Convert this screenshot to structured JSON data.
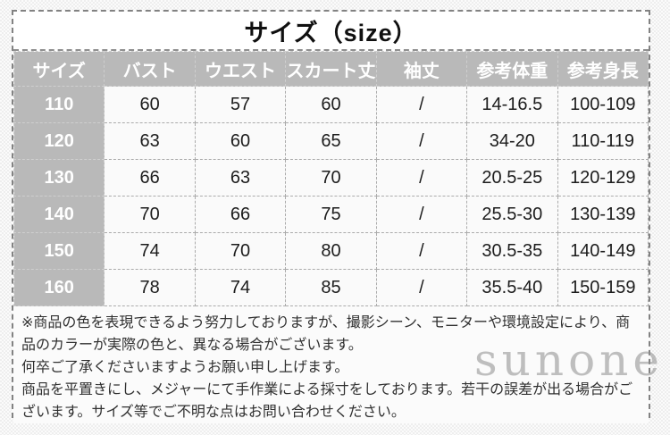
{
  "title": "サイズ（size）",
  "table": {
    "headers": [
      "サイズ",
      "バスト",
      "ウエスト",
      "スカート丈",
      "袖丈",
      "参考体重",
      "参考身長"
    ],
    "rows": [
      [
        "110",
        "60",
        "57",
        "60",
        "/",
        "14-16.5",
        "100-109"
      ],
      [
        "120",
        "63",
        "60",
        "65",
        "/",
        "34-20",
        "110-119"
      ],
      [
        "130",
        "66",
        "63",
        "70",
        "/",
        "20.5-25",
        "120-129"
      ],
      [
        "140",
        "70",
        "66",
        "75",
        "/",
        "25.5-30",
        "130-139"
      ],
      [
        "150",
        "74",
        "70",
        "80",
        "/",
        "30.5-35",
        "140-149"
      ],
      [
        "160",
        "78",
        "74",
        "85",
        "/",
        "35.5-40",
        "150-159"
      ]
    ]
  },
  "notes": [
    "※商品の色を表現できるよう努力しておりますが、撮影シーン、モニターや環境設定により、商品のカラーが実際の色と、異なる場合がございます。",
    "何卒ご了承くださいますようお願い申し上げます。",
    "商品を平置きにし、メジャーにて手作業による採寸をしております。若干の誤差が出る場合がございます。サイズ等でご不明な点はお問い合わせください。"
  ],
  "watermark": "sunone",
  "colors": {
    "header_bg": "#b9b9b9",
    "header_text": "#ffffff",
    "cell_bg": "#fafafa",
    "cell_text": "#1c1c1c",
    "outer_border": "#828282",
    "inner_border": "#ababab",
    "note_text": "#303030",
    "watermark": "#8d8d8d"
  }
}
